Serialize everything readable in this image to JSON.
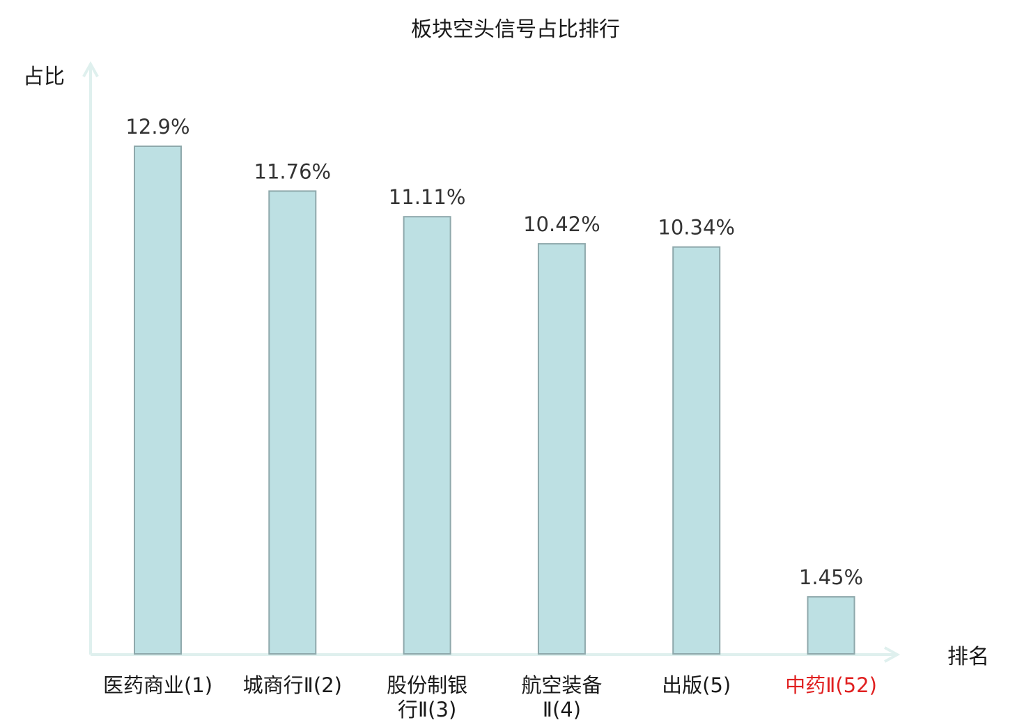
{
  "chart_data": {
    "type": "bar",
    "title": "板块空头信号占比排行",
    "ylabel": "占比",
    "xlabel": "排名",
    "categories": [
      [
        "医药商业(1)"
      ],
      [
        "城商行Ⅱ(2)"
      ],
      [
        "股份制银",
        "行Ⅱ(3)"
      ],
      [
        "航空装备",
        "Ⅱ(4)"
      ],
      [
        "出版(5)"
      ],
      [
        "中药Ⅱ(52)"
      ]
    ],
    "values": [
      12.9,
      11.76,
      11.11,
      10.42,
      10.34,
      1.45
    ],
    "value_labels": [
      "12.9%",
      "11.76%",
      "11.11%",
      "10.42%",
      "10.34%",
      "1.45%"
    ],
    "highlight_index": 5,
    "ylim": [
      0,
      15
    ],
    "grid": false,
    "legend": "none",
    "colors": {
      "bar_fill": "#bde0e3",
      "bar_stroke": "#8ea8ab",
      "axis": "#dff0ee",
      "text": "#333333",
      "highlight_text": "#e02020"
    }
  }
}
